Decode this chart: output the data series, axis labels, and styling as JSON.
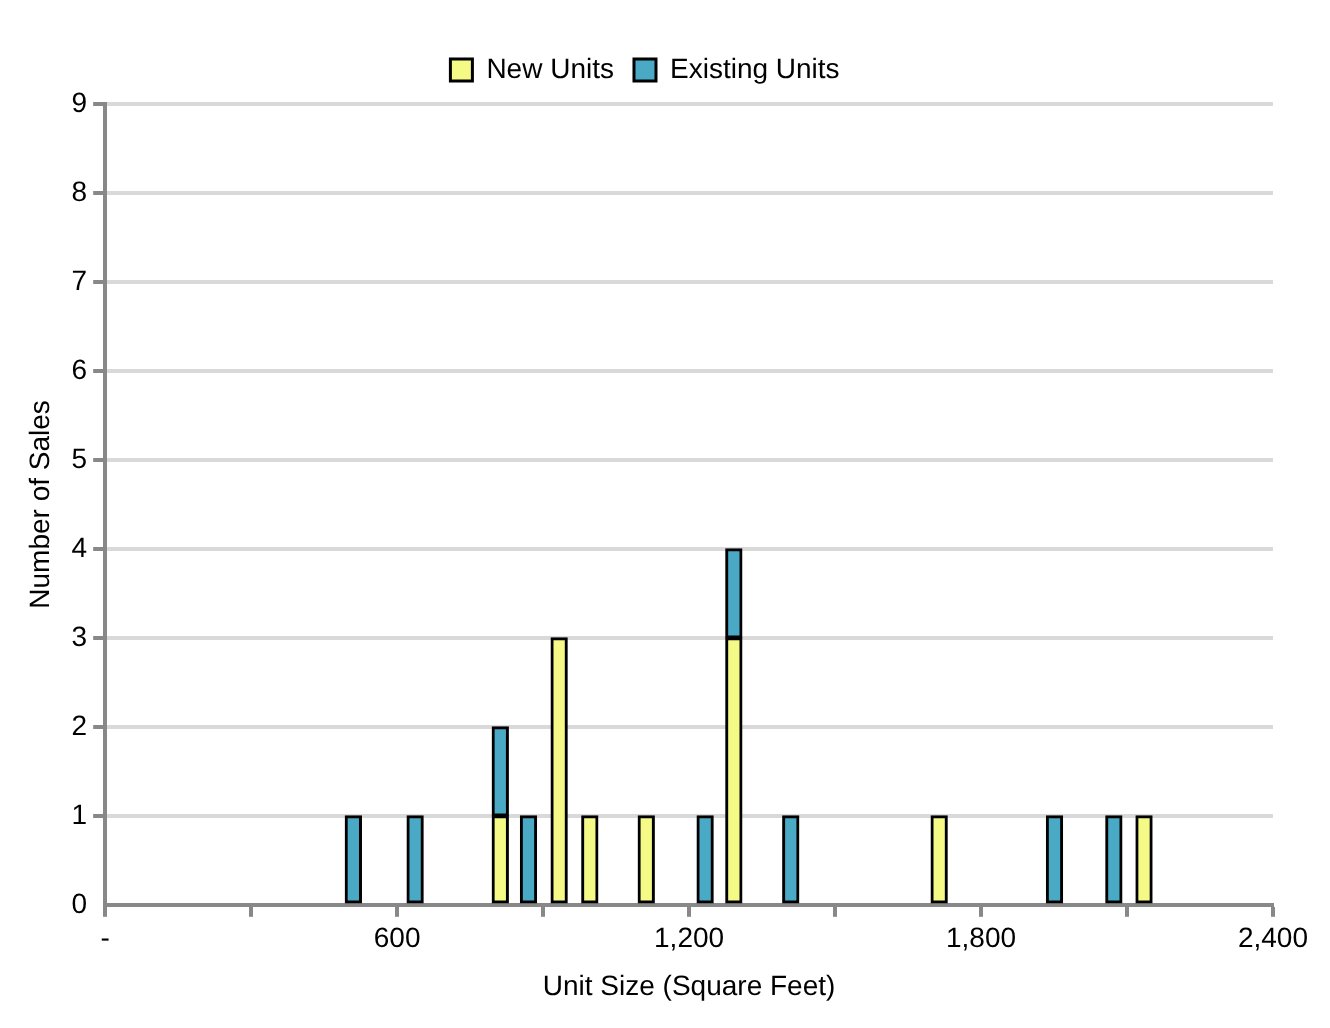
{
  "chart_data": {
    "type": "bar",
    "stacked": true,
    "xlabel": "Unit Size (Square Feet)",
    "ylabel": "Number of Sales",
    "x": [
      510,
      637,
      812,
      870,
      933,
      996,
      1112,
      1233,
      1292,
      1409,
      1714,
      1951,
      2073,
      2135
    ],
    "series": [
      {
        "name": "New Units",
        "color": "#f5fa87",
        "values": [
          null,
          null,
          1,
          null,
          3,
          1,
          1,
          null,
          3,
          null,
          1,
          null,
          null,
          1
        ]
      },
      {
        "name": "Existing Units",
        "color": "#4aa9c5",
        "values": [
          1,
          1,
          1,
          1,
          null,
          null,
          null,
          1,
          1,
          1,
          null,
          1,
          1,
          null
        ]
      }
    ],
    "xlim": [
      0,
      2400
    ],
    "xticks": [
      {
        "value": 0,
        "label": "-"
      },
      {
        "value": 300,
        "label": null
      },
      600,
      {
        "value": 900,
        "label": null
      },
      {
        "value": 1200,
        "label": "1,200"
      },
      {
        "value": 1500,
        "label": null
      },
      {
        "value": 1800,
        "label": "1,800"
      },
      {
        "value": 2100,
        "label": null
      },
      {
        "value": 2400,
        "label": "2,400"
      }
    ],
    "ylim": [
      0,
      9
    ],
    "yticks": [
      0,
      1,
      2,
      3,
      4,
      5,
      6,
      7,
      8,
      9
    ],
    "grid": "y",
    "legend": "top"
  }
}
